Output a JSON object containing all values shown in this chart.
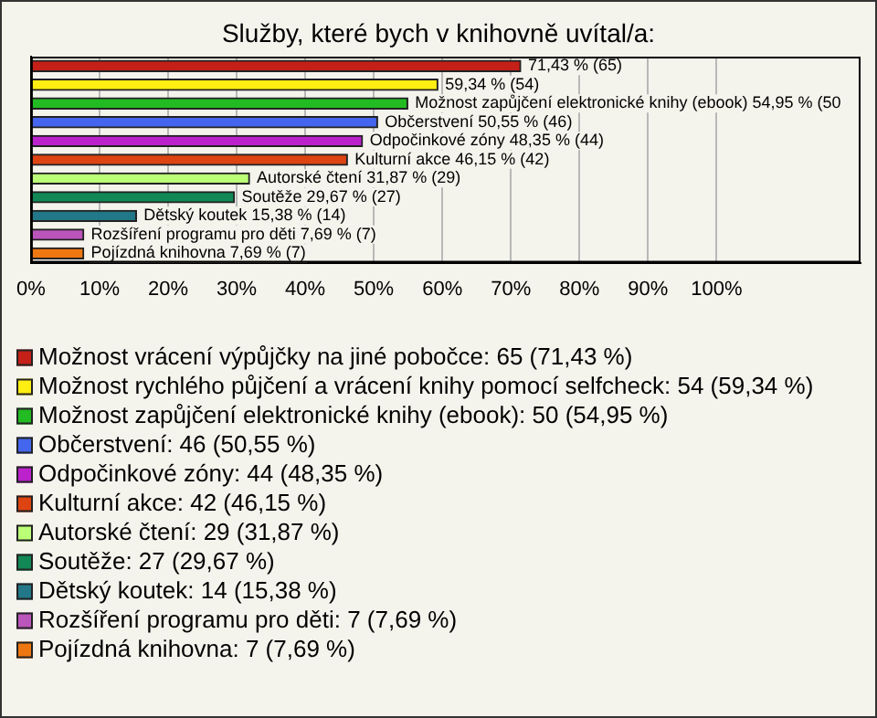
{
  "chart_data": {
    "type": "bar",
    "orientation": "horizontal",
    "stacked": true,
    "title": "Služby, které bych v knihovně uvítal/a:",
    "categories": [
      null,
      null,
      null,
      null,
      null,
      null,
      null,
      null,
      null,
      null,
      null
    ],
    "series": [
      {
        "name": "Možnost vrácení výpůjčky na jiné pobočce: 65 (71,43 %)",
        "color": "#c42018",
        "values": [
          71.43,
          null,
          null,
          null,
          null,
          null,
          null,
          null,
          null,
          null,
          null
        ],
        "value_labels": [
          "71,43 % (65)",
          null,
          null,
          null,
          null,
          null,
          null,
          null,
          null,
          null,
          null
        ]
      },
      {
        "name": "Možnost rychlého půjčení a vrácení knihy pomocí selfcheck: 54 (59,34 %)",
        "color": "#ffee11",
        "values": [
          null,
          59.34,
          null,
          null,
          null,
          null,
          null,
          null,
          null,
          null,
          null
        ],
        "value_labels": [
          null,
          "59,34 % (54)",
          null,
          null,
          null,
          null,
          null,
          null,
          null,
          null,
          null
        ]
      },
      {
        "name": "Možnost zapůjčení elektronické knihy (ebook): 50 (54,95 %)",
        "color": "#22bb22",
        "values": [
          null,
          null,
          54.95,
          null,
          null,
          null,
          null,
          null,
          null,
          null,
          null
        ],
        "value_labels": [
          null,
          null,
          "Možnost zapůjčení elektronické knihy (ebook) 54,95 % (50",
          null,
          null,
          null,
          null,
          null,
          null,
          null,
          null
        ]
      },
      {
        "name": "Občerstvení: 46 (50,55 %)",
        "color": "#4466ee",
        "values": [
          null,
          null,
          null,
          50.55,
          null,
          null,
          null,
          null,
          null,
          null,
          null
        ],
        "value_labels": [
          null,
          null,
          null,
          "Občerstvení 50,55 % (46)",
          null,
          null,
          null,
          null,
          null,
          null,
          null
        ]
      },
      {
        "name": "Odpočinkové zóny: 44 (48,35 %)",
        "color": "#bb22cc",
        "values": [
          null,
          null,
          null,
          null,
          48.35,
          null,
          null,
          null,
          null,
          null,
          null
        ],
        "value_labels": [
          null,
          null,
          null,
          null,
          "Odpočinkové zóny 48,35 % (44)",
          null,
          null,
          null,
          null,
          null,
          null
        ]
      },
      {
        "name": "Kulturní akce: 42 (46,15 %)",
        "color": "#dd4411",
        "values": [
          null,
          null,
          null,
          null,
          null,
          46.15,
          null,
          null,
          null,
          null,
          null
        ],
        "value_labels": [
          null,
          null,
          null,
          null,
          null,
          "Kulturní akce 46,15 % (42)",
          null,
          null,
          null,
          null,
          null
        ]
      },
      {
        "name": "Autorské čtení: 29 (31,87 %)",
        "color": "#bbff77",
        "values": [
          null,
          null,
          null,
          null,
          null,
          null,
          31.87,
          null,
          null,
          null,
          null
        ],
        "value_labels": [
          null,
          null,
          null,
          null,
          null,
          null,
          "Autorské čtení 31,87 % (29)",
          null,
          null,
          null,
          null
        ]
      },
      {
        "name": "Soutěže: 27 (29,67 %)",
        "color": "#118855",
        "values": [
          null,
          null,
          null,
          null,
          null,
          null,
          null,
          29.67,
          null,
          null,
          null
        ],
        "value_labels": [
          null,
          null,
          null,
          null,
          null,
          null,
          null,
          "Soutěže 29,67 % (27)",
          null,
          null,
          null
        ]
      },
      {
        "name": "Dětský koutek: 14 (15,38 %)",
        "color": "#227788",
        "values": [
          null,
          null,
          null,
          null,
          null,
          null,
          null,
          null,
          15.38,
          null,
          null
        ],
        "value_labels": [
          null,
          null,
          null,
          null,
          null,
          null,
          null,
          null,
          "Dětský koutek 15,38 % (14)",
          null,
          null
        ]
      },
      {
        "name": "Rozšíření programu pro děti: 7 (7,69 %)",
        "color": "#bb55bb",
        "values": [
          null,
          null,
          null,
          null,
          null,
          null,
          null,
          null,
          null,
          7.69,
          null
        ],
        "value_labels": [
          null,
          null,
          null,
          null,
          null,
          null,
          null,
          null,
          null,
          "Rozšíření programu pro děti 7,69 % (7)",
          null
        ]
      },
      {
        "name": "Pojízdná knihovna: 7 (7,69 %)",
        "color": "#ee7711",
        "values": [
          null,
          null,
          null,
          null,
          null,
          null,
          null,
          null,
          null,
          null,
          7.69
        ],
        "value_labels": [
          null,
          null,
          null,
          null,
          null,
          null,
          null,
          null,
          null,
          null,
          "Pojízdná knihovna 7,69 % (7)"
        ]
      }
    ],
    "xlim": [
      0,
      121
    ],
    "xticks": [
      {
        "value": 0,
        "label": "0%"
      },
      {
        "value": 10,
        "label": "10%"
      },
      {
        "value": 20,
        "label": "20%"
      },
      {
        "value": 30,
        "label": "30%"
      },
      {
        "value": 40,
        "label": "40%"
      },
      {
        "value": 50,
        "label": "50%"
      },
      {
        "value": 60,
        "label": "60%"
      },
      {
        "value": 70,
        "label": "70%"
      },
      {
        "value": 80,
        "label": "80%"
      },
      {
        "value": 90,
        "label": "90%"
      },
      {
        "value": 100,
        "label": "100%"
      }
    ],
    "grid": "x",
    "legend": "bottom",
    "tick_labels": "x"
  }
}
